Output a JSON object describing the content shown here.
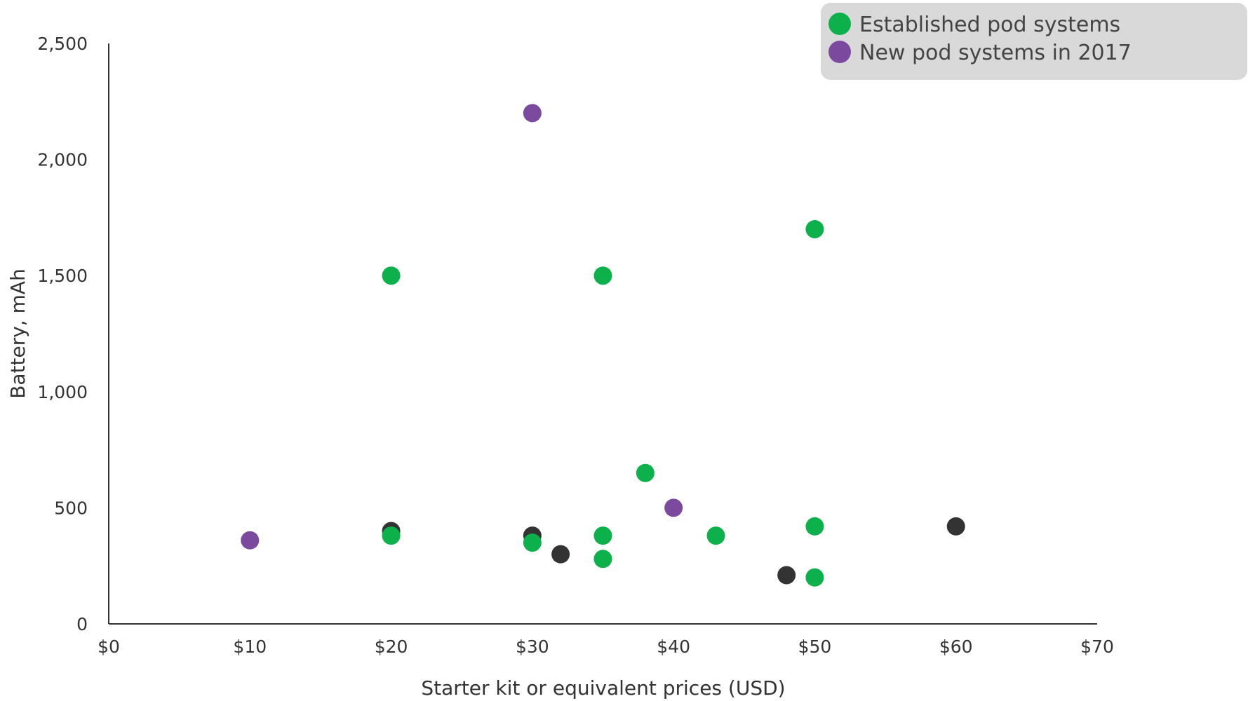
{
  "chart_data": {
    "type": "scatter",
    "title": "",
    "xlabel": "Starter kit or equivalent prices (USD)",
    "ylabel": "Battery, mAh",
    "xlim": [
      0,
      70
    ],
    "ylim": [
      0,
      2500
    ],
    "x_ticks": [
      0,
      10,
      20,
      30,
      40,
      50,
      60,
      70
    ],
    "x_tick_labels": [
      "$0",
      "$10",
      "$20",
      "$30",
      "$40",
      "$50",
      "$60",
      "$70"
    ],
    "y_ticks": [
      0,
      500,
      1000,
      1500,
      2000,
      2500
    ],
    "y_tick_labels": [
      "0",
      "500",
      "1,000",
      "1,500",
      "2,000",
      "2,500"
    ],
    "grid": false,
    "legend_position": "top-right",
    "series": [
      {
        "name": "Established pod systems",
        "color": "#0db14b",
        "in_legend": true,
        "points": [
          {
            "x": 20,
            "y": 1500
          },
          {
            "x": 35,
            "y": 1500
          },
          {
            "x": 50,
            "y": 1700
          },
          {
            "x": 20,
            "y": 380
          },
          {
            "x": 30,
            "y": 350
          },
          {
            "x": 35,
            "y": 380
          },
          {
            "x": 35,
            "y": 280
          },
          {
            "x": 38,
            "y": 650
          },
          {
            "x": 43,
            "y": 380
          },
          {
            "x": 50,
            "y": 420
          },
          {
            "x": 50,
            "y": 200
          }
        ]
      },
      {
        "name": "New pod systems in 2017",
        "color": "#7b4a9e",
        "in_legend": true,
        "points": [
          {
            "x": 30,
            "y": 2200
          },
          {
            "x": 10,
            "y": 360
          },
          {
            "x": 40,
            "y": 500
          }
        ]
      },
      {
        "color": "#333333",
        "in_legend": false,
        "points": [
          {
            "x": 20,
            "y": 400
          },
          {
            "x": 30,
            "y": 380
          },
          {
            "x": 32,
            "y": 300
          },
          {
            "x": 48,
            "y": 210
          },
          {
            "x": 60,
            "y": 420
          }
        ]
      }
    ]
  }
}
